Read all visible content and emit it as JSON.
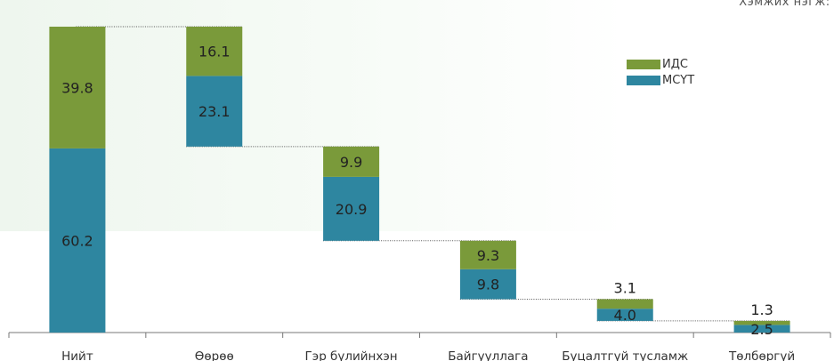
{
  "unit_note": "Хэмжих нэгж: К",
  "legend": [
    {
      "name": "ИДС",
      "color": "#7a9a3a"
    },
    {
      "name": "МСҮТ",
      "color": "#2e86a0"
    }
  ],
  "chart_data": {
    "type": "bar",
    "subtype": "waterfall-stacked",
    "categories": [
      "Нийт",
      "Өөрөө",
      "Гэр бүлийнхэн",
      "Байгууллага",
      "Буцалтгүй тусламж",
      "Төлбөргүй"
    ],
    "series": [
      {
        "name": "МСҮТ",
        "color": "#2e86a0",
        "values": [
          60.2,
          23.1,
          20.9,
          9.8,
          4.0,
          2.5
        ]
      },
      {
        "name": "ИДС",
        "color": "#7a9a3a",
        "values": [
          39.8,
          16.1,
          9.9,
          9.3,
          3.1,
          1.3
        ]
      }
    ],
    "labels": {
      "МСҮТ": [
        "60.2",
        "23.1",
        "20.9",
        "9.8",
        "4.0",
        "2.5"
      ],
      "ИДС": [
        "39.8",
        "16.1",
        "9.9",
        "9.3",
        "3.1",
        "1.3"
      ]
    },
    "ylim": [
      0,
      100
    ],
    "grid": false,
    "legend_position": "top-right",
    "connector_lines": true
  }
}
